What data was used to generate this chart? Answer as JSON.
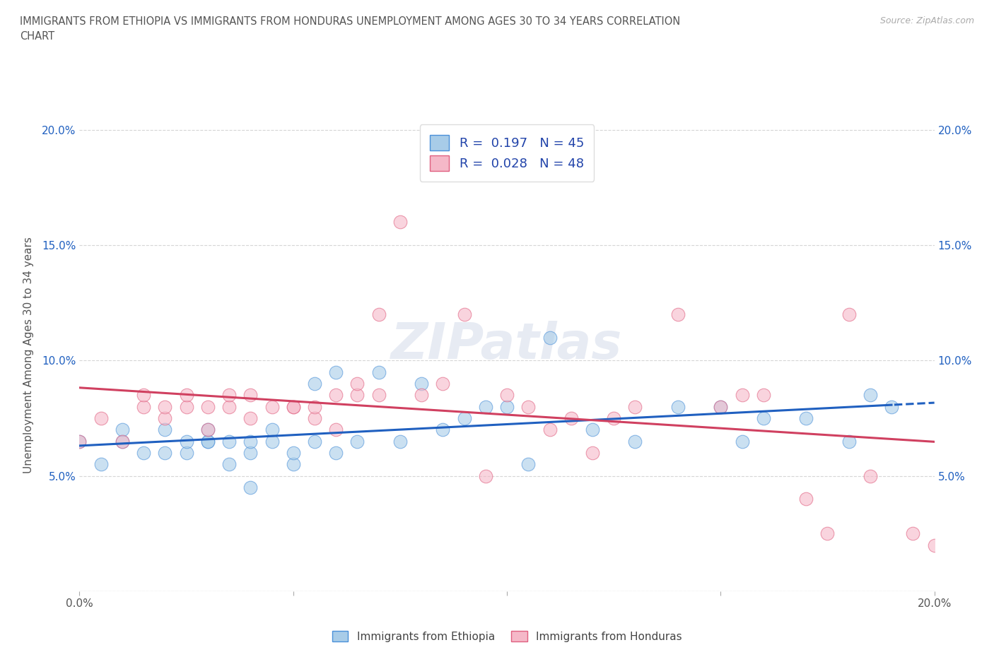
{
  "title_line1": "IMMIGRANTS FROM ETHIOPIA VS IMMIGRANTS FROM HONDURAS UNEMPLOYMENT AMONG AGES 30 TO 34 YEARS CORRELATION",
  "title_line2": "CHART",
  "source_text": "Source: ZipAtlas.com",
  "ylabel": "Unemployment Among Ages 30 to 34 years",
  "xlim": [
    0.0,
    0.2
  ],
  "ylim": [
    0.0,
    0.205
  ],
  "x_ticks": [
    0.0,
    0.05,
    0.1,
    0.15,
    0.2
  ],
  "x_tick_labels": [
    "0.0%",
    "",
    "",
    "",
    "20.0%"
  ],
  "y_ticks": [
    0.0,
    0.05,
    0.1,
    0.15,
    0.2
  ],
  "y_tick_labels_left": [
    "",
    "5.0%",
    "10.0%",
    "15.0%",
    "20.0%"
  ],
  "y_tick_labels_right": [
    "",
    "5.0%",
    "10.0%",
    "15.0%",
    "20.0%"
  ],
  "ethiopia_color": "#a8cce8",
  "honduras_color": "#f5b8c8",
  "ethiopia_edge_color": "#4a90d9",
  "honduras_edge_color": "#e06080",
  "ethiopia_line_color": "#2060c0",
  "honduras_line_color": "#d04060",
  "R_ethiopia": 0.197,
  "N_ethiopia": 45,
  "R_honduras": 0.028,
  "N_honduras": 48,
  "legend_ethiopia": "Immigrants from Ethiopia",
  "legend_honduras": "Immigrants from Honduras",
  "watermark": "ZIPatlas",
  "ethiopia_x": [
    0.0,
    0.005,
    0.01,
    0.01,
    0.015,
    0.02,
    0.02,
    0.025,
    0.025,
    0.03,
    0.03,
    0.03,
    0.035,
    0.035,
    0.04,
    0.04,
    0.04,
    0.045,
    0.045,
    0.05,
    0.05,
    0.055,
    0.055,
    0.06,
    0.06,
    0.065,
    0.07,
    0.075,
    0.08,
    0.085,
    0.09,
    0.095,
    0.1,
    0.105,
    0.11,
    0.12,
    0.13,
    0.14,
    0.15,
    0.155,
    0.16,
    0.17,
    0.18,
    0.185,
    0.19
  ],
  "ethiopia_y": [
    0.065,
    0.055,
    0.065,
    0.07,
    0.06,
    0.06,
    0.07,
    0.06,
    0.065,
    0.065,
    0.065,
    0.07,
    0.055,
    0.065,
    0.045,
    0.06,
    0.065,
    0.065,
    0.07,
    0.055,
    0.06,
    0.065,
    0.09,
    0.06,
    0.095,
    0.065,
    0.095,
    0.065,
    0.09,
    0.07,
    0.075,
    0.08,
    0.08,
    0.055,
    0.11,
    0.07,
    0.065,
    0.08,
    0.08,
    0.065,
    0.075,
    0.075,
    0.065,
    0.085,
    0.08
  ],
  "honduras_x": [
    0.0,
    0.005,
    0.01,
    0.015,
    0.015,
    0.02,
    0.02,
    0.025,
    0.025,
    0.03,
    0.03,
    0.035,
    0.035,
    0.04,
    0.04,
    0.045,
    0.05,
    0.05,
    0.055,
    0.055,
    0.06,
    0.06,
    0.065,
    0.065,
    0.07,
    0.07,
    0.075,
    0.08,
    0.085,
    0.09,
    0.095,
    0.1,
    0.105,
    0.11,
    0.115,
    0.12,
    0.125,
    0.13,
    0.14,
    0.15,
    0.155,
    0.16,
    0.17,
    0.175,
    0.18,
    0.185,
    0.195,
    0.2
  ],
  "honduras_y": [
    0.065,
    0.075,
    0.065,
    0.08,
    0.085,
    0.075,
    0.08,
    0.08,
    0.085,
    0.07,
    0.08,
    0.08,
    0.085,
    0.075,
    0.085,
    0.08,
    0.08,
    0.08,
    0.075,
    0.08,
    0.07,
    0.085,
    0.085,
    0.09,
    0.085,
    0.12,
    0.16,
    0.085,
    0.09,
    0.12,
    0.05,
    0.085,
    0.08,
    0.07,
    0.075,
    0.06,
    0.075,
    0.08,
    0.12,
    0.08,
    0.085,
    0.085,
    0.04,
    0.025,
    0.12,
    0.05,
    0.025,
    0.02
  ]
}
